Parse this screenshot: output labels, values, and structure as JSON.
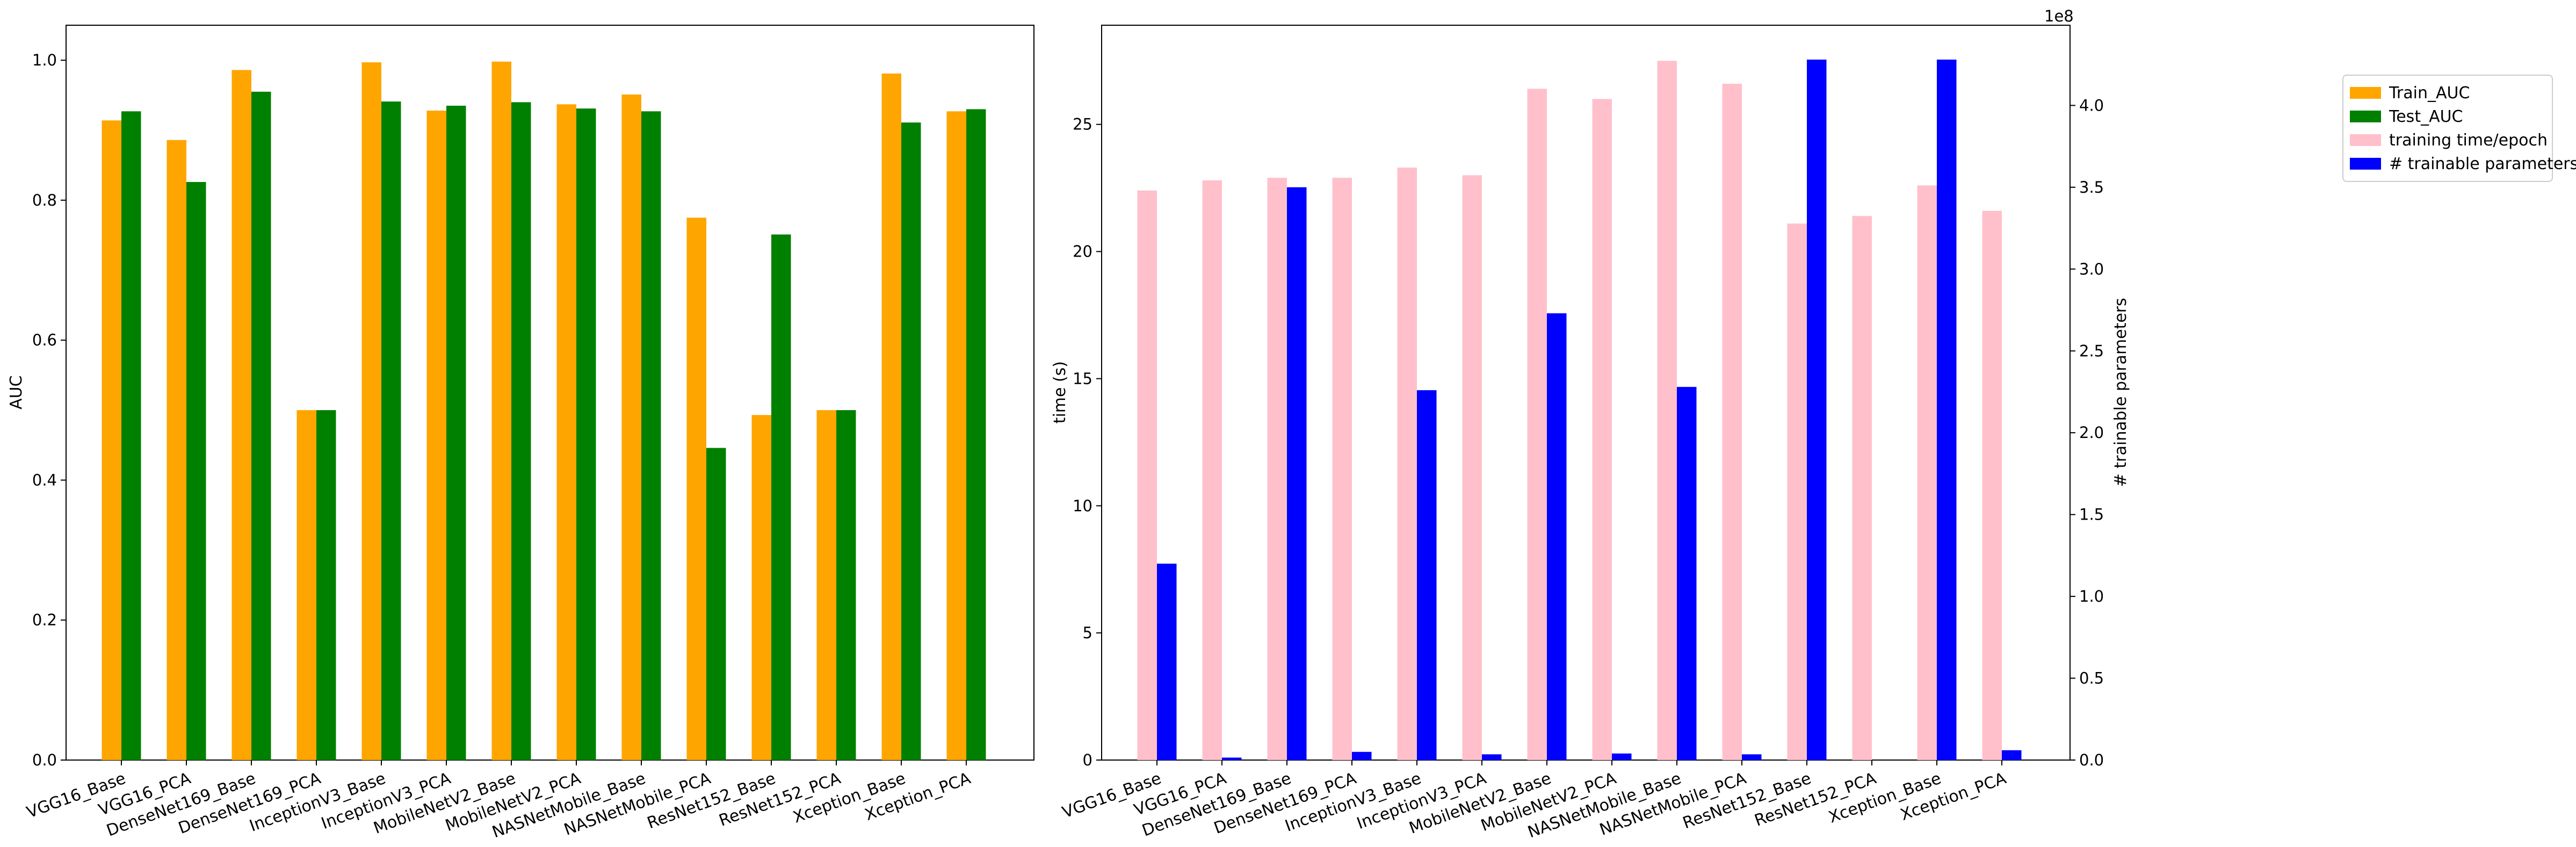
{
  "chart_data": [
    {
      "type": "bar",
      "categories": [
        "VGG16_Base",
        "VGG16_PCA",
        "DenseNet169_Base",
        "DenseNet169_PCA",
        "InceptionV3_Base",
        "InceptionV3_PCA",
        "MobileNetV2_Base",
        "MobileNetV2_PCA",
        "NASNetMobile_Base",
        "NASNetMobile_PCA",
        "ResNet152_Base",
        "ResNet152_PCA",
        "Xception_Base",
        "Xception_PCA"
      ],
      "series": [
        {
          "name": "Train_AUC",
          "color": "#ffa500",
          "values": [
            0.914,
            0.886,
            0.986,
            0.5,
            0.997,
            0.928,
            0.998,
            0.937,
            0.951,
            0.775,
            0.493,
            0.5,
            0.981,
            0.927
          ]
        },
        {
          "name": "Test_AUC",
          "color": "#008000",
          "values": [
            0.927,
            0.826,
            0.955,
            0.5,
            0.941,
            0.935,
            0.94,
            0.931,
            0.927,
            0.446,
            0.751,
            0.5,
            0.911,
            0.93
          ]
        }
      ],
      "xlabel": "",
      "ylabel": "AUC",
      "ylim": [
        0.0,
        1.05
      ],
      "yticks": [
        "0.0",
        "0.2",
        "0.4",
        "0.6",
        "0.8",
        "1.0"
      ],
      "grid": false
    },
    {
      "type": "bar",
      "categories": [
        "VGG16_Base",
        "VGG16_PCA",
        "DenseNet169_Base",
        "DenseNet169_PCA",
        "InceptionV3_Base",
        "InceptionV3_PCA",
        "MobileNetV2_Base",
        "MobileNetV2_PCA",
        "NASNetMobile_Base",
        "NASNetMobile_PCA",
        "ResNet152_Base",
        "ResNet152_PCA",
        "Xception_Base",
        "Xception_PCA"
      ],
      "series": [
        {
          "name": "training time/epoch",
          "color": "#ffc0cb",
          "axis": "left",
          "values": [
            22.4,
            22.8,
            22.9,
            22.9,
            23.3,
            23.0,
            26.4,
            26.0,
            27.5,
            26.6,
            21.1,
            21.4,
            22.6,
            21.6
          ]
        },
        {
          "name": "# trainable parameters",
          "color": "#0000ff",
          "axis": "right",
          "values": [
            120000000,
            1500000,
            350000000,
            5000000,
            226000000,
            3500000,
            273000000,
            4000000,
            228000000,
            3500000,
            428000000,
            0,
            428000000,
            6000000
          ]
        }
      ],
      "xlabel": "",
      "ylabel": "time (s)",
      "ylabel_right": "# trainable parameters",
      "ylim": [
        0,
        28.9
      ],
      "ylim_right": [
        0,
        449000000
      ],
      "yticks": [
        "0",
        "5",
        "10",
        "15",
        "20",
        "25"
      ],
      "yticks_right": [
        "0.0",
        "0.5",
        "1.0",
        "1.5",
        "2.0",
        "2.5",
        "3.0",
        "3.5",
        "4.0"
      ],
      "right_offset_text": "1e8",
      "grid": false
    }
  ],
  "legend": {
    "placement": "right",
    "entries": [
      {
        "label": "Train_AUC",
        "color": "#ffa500"
      },
      {
        "label": "Test_AUC",
        "color": "#008000"
      },
      {
        "label": "training time/epoch",
        "color": "#ffc0cb"
      },
      {
        "label": "# trainable parameters",
        "color": "#0000ff"
      }
    ]
  }
}
